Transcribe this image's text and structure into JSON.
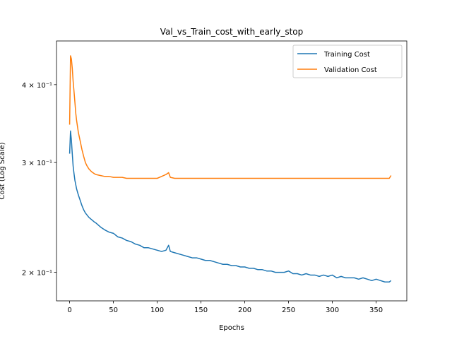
{
  "chart_data": {
    "type": "line",
    "title": "Val_vs_Train_cost_with_early_stop",
    "xlabel": "Epochs",
    "ylabel": "Cost (Log Scale)",
    "yscale": "log",
    "xlim": [
      -15,
      385
    ],
    "ylim": [
      0.18,
      0.47
    ],
    "xticks": [
      0,
      50,
      100,
      150,
      200,
      250,
      300,
      350
    ],
    "xtick_labels": [
      "0",
      "50",
      "100",
      "150",
      "200",
      "250",
      "300",
      "350"
    ],
    "yticks": [
      0.2,
      0.3,
      0.4
    ],
    "ytick_labels": [
      "2 × 10⁻¹",
      "3 × 10⁻¹",
      "4 × 10⁻¹"
    ],
    "grid": false,
    "legend_location": "upper right",
    "series": [
      {
        "name": "Training Cost",
        "color": "#1f77b4",
        "x": [
          0,
          1,
          2,
          3,
          4,
          5,
          6,
          8,
          10,
          12,
          14,
          16,
          18,
          20,
          22,
          25,
          28,
          30,
          33,
          36,
          40,
          45,
          50,
          55,
          60,
          65,
          70,
          75,
          80,
          85,
          90,
          95,
          100,
          105,
          110,
          113,
          115,
          120,
          125,
          130,
          135,
          140,
          145,
          150,
          155,
          160,
          165,
          170,
          175,
          180,
          185,
          190,
          195,
          200,
          205,
          210,
          215,
          220,
          225,
          230,
          235,
          240,
          245,
          250,
          255,
          260,
          265,
          270,
          275,
          280,
          285,
          290,
          295,
          300,
          305,
          310,
          315,
          320,
          325,
          330,
          335,
          340,
          345,
          350,
          355,
          360,
          365,
          367
        ],
        "y": [
          0.31,
          0.337,
          0.326,
          0.31,
          0.296,
          0.288,
          0.281,
          0.272,
          0.266,
          0.261,
          0.256,
          0.252,
          0.249,
          0.247,
          0.245,
          0.243,
          0.241,
          0.24,
          0.238,
          0.236,
          0.234,
          0.232,
          0.231,
          0.228,
          0.227,
          0.225,
          0.224,
          0.222,
          0.221,
          0.219,
          0.219,
          0.218,
          0.217,
          0.216,
          0.217,
          0.221,
          0.216,
          0.215,
          0.214,
          0.213,
          0.212,
          0.211,
          0.211,
          0.21,
          0.209,
          0.209,
          0.208,
          0.207,
          0.206,
          0.206,
          0.205,
          0.205,
          0.204,
          0.204,
          0.203,
          0.203,
          0.202,
          0.202,
          0.201,
          0.201,
          0.2,
          0.2,
          0.2,
          0.201,
          0.199,
          0.199,
          0.198,
          0.199,
          0.198,
          0.198,
          0.197,
          0.198,
          0.197,
          0.198,
          0.196,
          0.197,
          0.196,
          0.196,
          0.196,
          0.195,
          0.196,
          0.195,
          0.194,
          0.195,
          0.194,
          0.193,
          0.193,
          0.194
        ]
      },
      {
        "name": "Validation Cost",
        "color": "#ff7f0e",
        "x": [
          0,
          1,
          2,
          3,
          4,
          5,
          6,
          7,
          8,
          10,
          12,
          14,
          16,
          18,
          20,
          22,
          25,
          28,
          30,
          35,
          40,
          45,
          50,
          55,
          60,
          65,
          70,
          75,
          80,
          85,
          90,
          95,
          100,
          105,
          110,
          113,
          115,
          120,
          125,
          130,
          135,
          140,
          145,
          150,
          155,
          160,
          165,
          170,
          175,
          180,
          185,
          190,
          195,
          200,
          205,
          210,
          215,
          220,
          225,
          230,
          235,
          240,
          245,
          250,
          255,
          260,
          265,
          270,
          275,
          280,
          285,
          290,
          295,
          300,
          305,
          310,
          315,
          320,
          325,
          330,
          335,
          340,
          345,
          350,
          355,
          360,
          365,
          367
        ],
        "y": [
          0.345,
          0.445,
          0.44,
          0.425,
          0.405,
          0.39,
          0.375,
          0.36,
          0.35,
          0.335,
          0.325,
          0.315,
          0.307,
          0.3,
          0.296,
          0.293,
          0.29,
          0.288,
          0.287,
          0.286,
          0.285,
          0.285,
          0.284,
          0.284,
          0.284,
          0.283,
          0.283,
          0.283,
          0.283,
          0.283,
          0.283,
          0.283,
          0.283,
          0.285,
          0.287,
          0.289,
          0.284,
          0.283,
          0.283,
          0.283,
          0.283,
          0.283,
          0.283,
          0.283,
          0.283,
          0.283,
          0.283,
          0.283,
          0.283,
          0.283,
          0.283,
          0.283,
          0.283,
          0.283,
          0.283,
          0.283,
          0.283,
          0.283,
          0.283,
          0.283,
          0.283,
          0.283,
          0.283,
          0.283,
          0.283,
          0.283,
          0.283,
          0.283,
          0.283,
          0.283,
          0.283,
          0.283,
          0.283,
          0.283,
          0.283,
          0.283,
          0.283,
          0.283,
          0.283,
          0.283,
          0.283,
          0.283,
          0.283,
          0.283,
          0.283,
          0.283,
          0.283,
          0.286
        ]
      }
    ]
  }
}
